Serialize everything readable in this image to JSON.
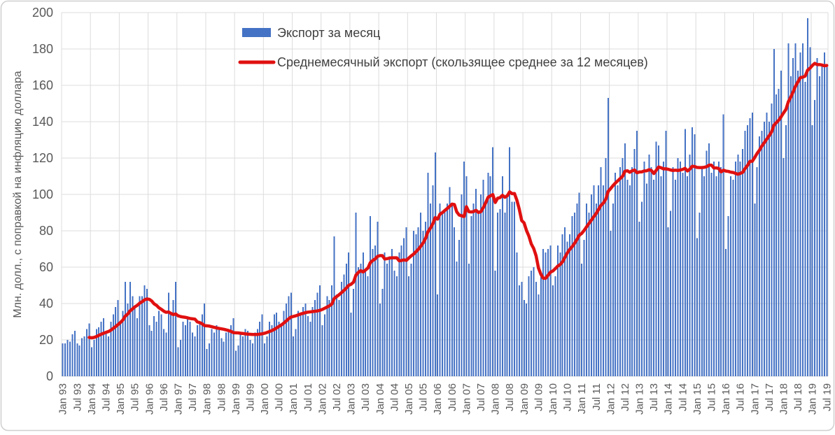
{
  "chart_data": {
    "type": "bar",
    "title": "",
    "ylabel": "Млн. долл., с поправкой на инфляцию доллара",
    "xlabel": "",
    "ylim": [
      0,
      200
    ],
    "y_tick_step": 20,
    "y_tick_labels": [
      "0",
      "20",
      "40",
      "60",
      "80",
      "100",
      "120",
      "140",
      "160",
      "180",
      "200"
    ],
    "x": {
      "frequency": "monthly",
      "start": "Jan 1993",
      "end": "Jul 2019",
      "tick_every_n_bars": 6,
      "tick_labels": [
        "Jan 93",
        "Jul 93",
        "Jan 94",
        "Jul 94",
        "Jan 95",
        "Jul 95",
        "Jan 96",
        "Jul 96",
        "Jan 97",
        "Jul 97",
        "Jan 98",
        "Jul 98",
        "Jan 99",
        "Jul 99",
        "Jan 00",
        "Jul 00",
        "Jan 01",
        "Jul 01",
        "Jan 02",
        "Jul 02",
        "Jan 03",
        "Jul 03",
        "Jan 04",
        "Jul 04",
        "Jan 05",
        "Jul 05",
        "Jan 06",
        "Jul 06",
        "Jan 07",
        "Jul 07",
        "Jan 08",
        "Jul 08",
        "Jan 09",
        "Jul 09",
        "Jan 10",
        "Jul 10",
        "Jan 11",
        "Jul 11",
        "Jan 12",
        "Jul 12",
        "Jan 13",
        "Jul 13",
        "Jan 14",
        "Jul 14",
        "Jan 15",
        "Jul 15",
        "Jan 16",
        "Jul 16",
        "Jan 17",
        "Jul 17",
        "Jan 18",
        "Jul 18",
        "Jan 19",
        "Jul 19"
      ]
    },
    "series": [
      {
        "name": "Экспорт за месяц",
        "type": "bar",
        "color": "#4472c4",
        "monthly_values": [
          18,
          18,
          20,
          19,
          23,
          25,
          18,
          17,
          21,
          22,
          26,
          29,
          16,
          20,
          26,
          27,
          30,
          32,
          24,
          22,
          30,
          34,
          38,
          42,
          30,
          36,
          52,
          40,
          52,
          44,
          38,
          32,
          44,
          44,
          50,
          48,
          28,
          25,
          33,
          30,
          36,
          34,
          26,
          24,
          46,
          35,
          42,
          52,
          16,
          20,
          30,
          28,
          32,
          30,
          24,
          22,
          28,
          30,
          34,
          40,
          15,
          18,
          26,
          24,
          28,
          27,
          21,
          19,
          24,
          26,
          28,
          32,
          14,
          17,
          24,
          22,
          26,
          25,
          20,
          18,
          24,
          26,
          30,
          34,
          18,
          22,
          30,
          28,
          34,
          35,
          30,
          28,
          36,
          40,
          44,
          46,
          22,
          26,
          36,
          34,
          38,
          40,
          33,
          30,
          38,
          42,
          46,
          50,
          28,
          34,
          44,
          42,
          50,
          77,
          45,
          42,
          52,
          56,
          62,
          68,
          35,
          48,
          90,
          60,
          62,
          68,
          58,
          55,
          88,
          70,
          72,
          85,
          40,
          48,
          68,
          62,
          66,
          70,
          58,
          55,
          68,
          72,
          76,
          82,
          55,
          62,
          80,
          78,
          82,
          90,
          80,
          85,
          112,
          95,
          105,
          123,
          45,
          95,
          90,
          92,
          95,
          104,
          95,
          82,
          63,
          75,
          100,
          118,
          110,
          62,
          88,
          95,
          103,
          90,
          100,
          108,
          95,
          112,
          110,
          126,
          58,
          90,
          92,
          110,
          90,
          100,
          126,
          96,
          96,
          68,
          50,
          52,
          42,
          40,
          55,
          58,
          60,
          52,
          45,
          55,
          70,
          68,
          70,
          72,
          50,
          55,
          72,
          68,
          78,
          82,
          74,
          78,
          88,
          90,
          95,
          101,
          62,
          75,
          95,
          90,
          100,
          105,
          95,
          105,
          115,
          105,
          120,
          153,
          80,
          95,
          112,
          105,
          115,
          120,
          128,
          108,
          105,
          115,
          125,
          135,
          85,
          96,
          118,
          106,
          122,
          115,
          108,
          129,
          127,
          110,
          118,
          135,
          82,
          91,
          115,
          108,
          120,
          118,
          112,
          136,
          110,
          122,
          137,
          133,
          76,
          90,
          115,
          110,
          124,
          128,
          112,
          118,
          110,
          118,
          115,
          144,
          70,
          88,
          110,
          108,
          118,
          122,
          118,
          125,
          135,
          138,
          142,
          145,
          95,
          115,
          132,
          135,
          140,
          145,
          140,
          150,
          180,
          155,
          158,
          168,
          120,
          138,
          183,
          165,
          175,
          183,
          168,
          178,
          183,
          162,
          197,
          181,
          138,
          152,
          175,
          165,
          172,
          178,
          170
        ]
      },
      {
        "name": "Среднемесячный экспорт (скользящее среднее за 12 месяцев)",
        "type": "line",
        "color": "#e01010",
        "derivation": "trailing 12-month mean of monthly bar series"
      }
    ],
    "legend_position": "top-center",
    "grid": {
      "horizontal": true,
      "vertical_every_12_months": true,
      "color": "#dcdcdc"
    },
    "colors": {
      "bar": "#4472c4",
      "line": "#e01010",
      "axis_text": "#595959",
      "legend_text": "#404040",
      "grid": "#dcdcdc",
      "border": "#cfcfcf",
      "background": "#ffffff"
    }
  }
}
